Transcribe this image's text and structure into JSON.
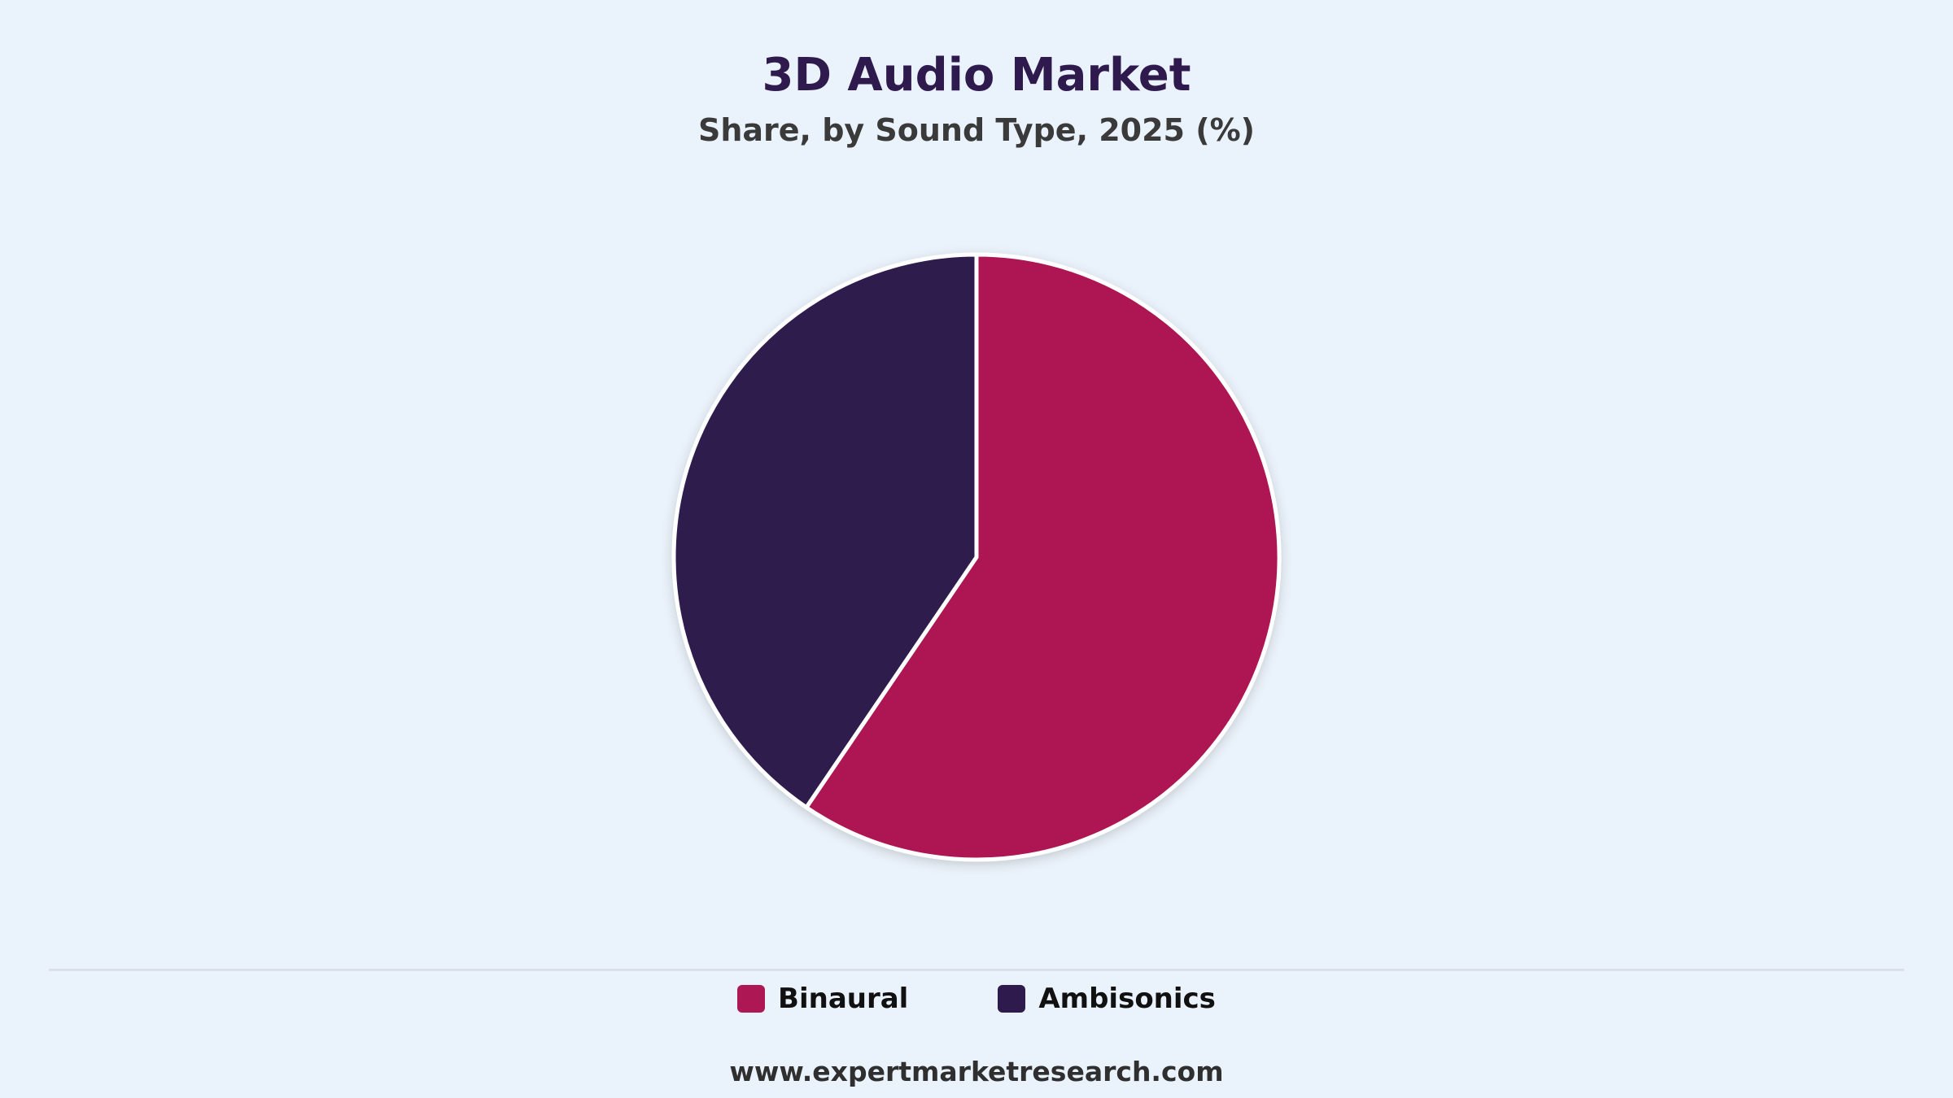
{
  "title": "3D Audio Market",
  "subtitle": "Share, by Sound Type, 2025 (%)",
  "source": "www.expertmarketresearch.com",
  "colors": {
    "background": "#eaf2fb",
    "binaural": "#ad1753",
    "ambisonics": "#2e1a4d",
    "slice_border": "#ffffff"
  },
  "chart_data": {
    "type": "pie",
    "title": "3D Audio Market",
    "subtitle": "Share, by Sound Type, 2025 (%)",
    "categories": [
      "Binaural",
      "Ambisonics"
    ],
    "values": [
      59.5,
      40.5
    ],
    "colors": [
      "#ad1753",
      "#2e1a4d"
    ],
    "start_angle": "12 o'clock",
    "direction": "clockwise",
    "legend_placement": "bottom-center",
    "data_labels": false
  },
  "legend": {
    "items": [
      {
        "label": "Binaural",
        "color": "#ad1753"
      },
      {
        "label": "Ambisonics",
        "color": "#2e1a4d"
      }
    ]
  }
}
